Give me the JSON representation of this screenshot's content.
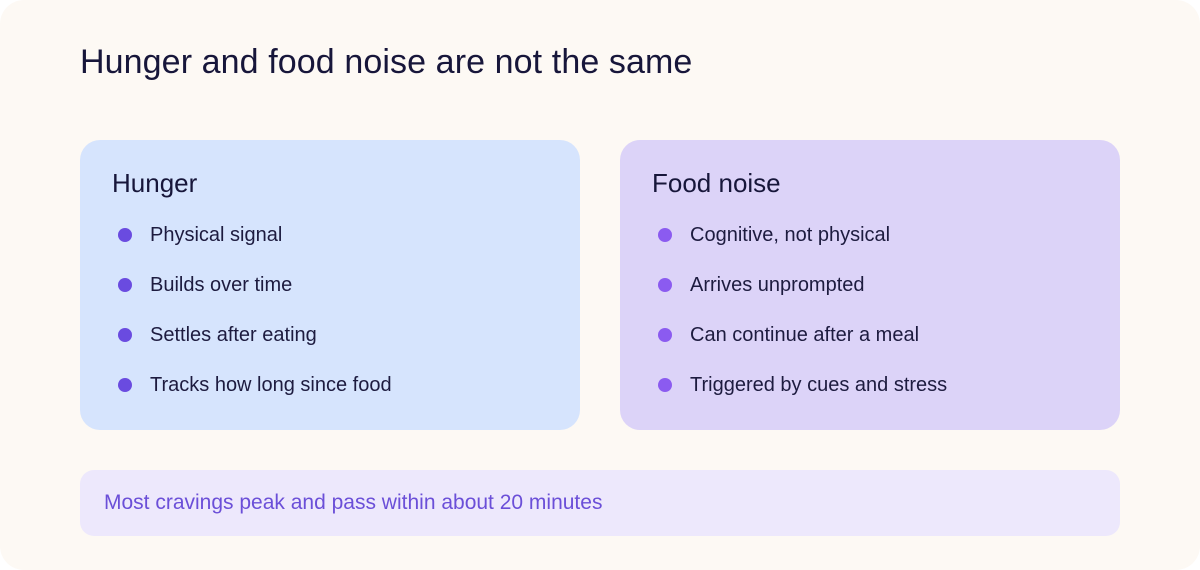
{
  "title": "Hunger and food noise are not the same",
  "colors": {
    "page_background": "#fdf9f4",
    "title_text": "#17163a",
    "hunger_card": "#d6e4fd",
    "hunger_bullet": "#6a4be0",
    "food_noise_card": "#dcd3f8",
    "food_noise_bullet": "#8b5bf0",
    "callout_background": "#ede8fc",
    "callout_text": "#6b4fd8"
  },
  "cards": [
    {
      "heading": "Hunger",
      "items": [
        "Physical signal",
        "Builds over time",
        "Settles after eating",
        "Tracks how long since food"
      ]
    },
    {
      "heading": "Food noise",
      "items": [
        "Cognitive, not physical",
        "Arrives unprompted",
        "Can continue after a meal",
        "Triggered by cues and stress"
      ]
    }
  ],
  "callout": "Most cravings peak and pass within about 20 minutes"
}
